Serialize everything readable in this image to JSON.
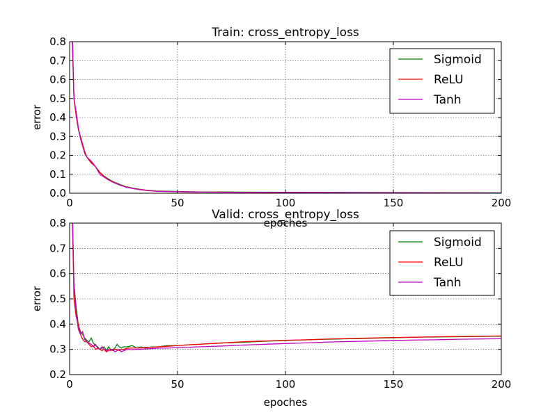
{
  "chart_data": [
    {
      "type": "line",
      "title": "Train: cross_entropy_loss",
      "xlabel": "epoches",
      "ylabel": "error",
      "xlim": [
        0,
        200
      ],
      "ylim": [
        0.0,
        0.8
      ],
      "xticks": [
        0,
        50,
        100,
        150,
        200
      ],
      "yticks": [
        0.0,
        0.1,
        0.2,
        0.3,
        0.4,
        0.5,
        0.6,
        0.7,
        0.8
      ],
      "ytick_labels": [
        "0.0",
        "0.1",
        "0.2",
        "0.3",
        "0.4",
        "0.5",
        "0.6",
        "0.7",
        "0.8"
      ],
      "grid": true,
      "legend_position": "top-right",
      "series": [
        {
          "name": "Sigmoid",
          "color": "#008000",
          "points": [
            [
              1,
              0.9
            ],
            [
              2,
              0.5
            ],
            [
              3,
              0.42
            ],
            [
              4,
              0.34
            ],
            [
              5,
              0.29
            ],
            [
              6,
              0.25
            ],
            [
              7,
              0.22
            ],
            [
              8,
              0.19
            ],
            [
              10,
              0.165
            ],
            [
              12,
              0.14
            ],
            [
              14,
              0.11
            ],
            [
              16,
              0.09
            ],
            [
              18,
              0.075
            ],
            [
              20,
              0.062
            ],
            [
              23,
              0.048
            ],
            [
              26,
              0.035
            ],
            [
              30,
              0.025
            ],
            [
              35,
              0.017
            ],
            [
              40,
              0.012
            ],
            [
              50,
              0.009
            ],
            [
              60,
              0.007
            ],
            [
              80,
              0.006
            ],
            [
              100,
              0.005
            ],
            [
              130,
              0.004
            ],
            [
              160,
              0.003
            ],
            [
              200,
              0.002
            ]
          ]
        },
        {
          "name": "ReLU",
          "color": "#ff0000",
          "points": [
            [
              1,
              0.95
            ],
            [
              2,
              0.5
            ],
            [
              3,
              0.41
            ],
            [
              4,
              0.34
            ],
            [
              5,
              0.3
            ],
            [
              6,
              0.26
            ],
            [
              7,
              0.22
            ],
            [
              8,
              0.19
            ],
            [
              10,
              0.16
            ],
            [
              12,
              0.14
            ],
            [
              14,
              0.11
            ],
            [
              16,
              0.088
            ],
            [
              18,
              0.072
            ],
            [
              20,
              0.06
            ],
            [
              23,
              0.045
            ],
            [
              26,
              0.033
            ],
            [
              30,
              0.024
            ],
            [
              35,
              0.016
            ],
            [
              40,
              0.011
            ],
            [
              50,
              0.008
            ],
            [
              60,
              0.006
            ],
            [
              80,
              0.005
            ],
            [
              100,
              0.004
            ],
            [
              130,
              0.003
            ],
            [
              160,
              0.002
            ],
            [
              200,
              0.0015
            ]
          ]
        },
        {
          "name": "Tanh",
          "color": "#bf00bf",
          "points": [
            [
              1,
              0.95
            ],
            [
              2,
              0.5
            ],
            [
              3,
              0.43
            ],
            [
              4,
              0.35
            ],
            [
              5,
              0.29
            ],
            [
              6,
              0.25
            ],
            [
              7,
              0.21
            ],
            [
              8,
              0.19
            ],
            [
              10,
              0.17
            ],
            [
              12,
              0.14
            ],
            [
              14,
              0.1
            ],
            [
              16,
              0.085
            ],
            [
              18,
              0.07
            ],
            [
              20,
              0.058
            ],
            [
              23,
              0.044
            ],
            [
              26,
              0.032
            ],
            [
              30,
              0.023
            ],
            [
              35,
              0.015
            ],
            [
              40,
              0.01
            ],
            [
              50,
              0.008
            ],
            [
              60,
              0.006
            ],
            [
              80,
              0.005
            ],
            [
              100,
              0.004
            ],
            [
              130,
              0.003
            ],
            [
              160,
              0.002
            ],
            [
              200,
              0.0015
            ]
          ]
        }
      ]
    },
    {
      "type": "line",
      "title": "Valid: cross_entropy_loss",
      "xlabel": "epoches",
      "ylabel": "error",
      "xlim": [
        0,
        200
      ],
      "ylim": [
        0.2,
        0.8
      ],
      "xticks": [
        0,
        50,
        100,
        150,
        200
      ],
      "yticks": [
        0.2,
        0.3,
        0.4,
        0.5,
        0.6,
        0.7,
        0.8
      ],
      "ytick_labels": [
        "0.2",
        "0.3",
        "0.4",
        "0.5",
        "0.6",
        "0.7",
        "0.8"
      ],
      "grid": true,
      "legend_position": "top-right",
      "series": [
        {
          "name": "Sigmoid",
          "color": "#008000",
          "points": [
            [
              1,
              0.95
            ],
            [
              2,
              0.56
            ],
            [
              3,
              0.47
            ],
            [
              4,
              0.4
            ],
            [
              5,
              0.37
            ],
            [
              6,
              0.36
            ],
            [
              7,
              0.345
            ],
            [
              8,
              0.335
            ],
            [
              9,
              0.33
            ],
            [
              10,
              0.345
            ],
            [
              11,
              0.325
            ],
            [
              12,
              0.315
            ],
            [
              13,
              0.31
            ],
            [
              14,
              0.3
            ],
            [
              15,
              0.305
            ],
            [
              16,
              0.31
            ],
            [
              17,
              0.295
            ],
            [
              18,
              0.31
            ],
            [
              19,
              0.3
            ],
            [
              20,
              0.3
            ],
            [
              21,
              0.305
            ],
            [
              22,
              0.32
            ],
            [
              23,
              0.31
            ],
            [
              24,
              0.305
            ],
            [
              25,
              0.31
            ],
            [
              27,
              0.31
            ],
            [
              29,
              0.315
            ],
            [
              31,
              0.305
            ],
            [
              33,
              0.31
            ],
            [
              35,
              0.305
            ],
            [
              38,
              0.31
            ],
            [
              41,
              0.31
            ],
            [
              45,
              0.315
            ],
            [
              50,
              0.315
            ],
            [
              55,
              0.318
            ],
            [
              60,
              0.32
            ],
            [
              70,
              0.325
            ],
            [
              80,
              0.328
            ],
            [
              90,
              0.332
            ],
            [
              100,
              0.335
            ],
            [
              110,
              0.338
            ],
            [
              120,
              0.34
            ],
            [
              130,
              0.342
            ],
            [
              140,
              0.344
            ],
            [
              150,
              0.346
            ],
            [
              160,
              0.348
            ],
            [
              170,
              0.349
            ],
            [
              180,
              0.35
            ],
            [
              190,
              0.351
            ],
            [
              200,
              0.352
            ]
          ]
        },
        {
          "name": "ReLU",
          "color": "#ff0000",
          "points": [
            [
              1,
              0.95
            ],
            [
              2,
              0.5
            ],
            [
              3,
              0.43
            ],
            [
              4,
              0.4
            ],
            [
              5,
              0.36
            ],
            [
              6,
              0.34
            ],
            [
              7,
              0.33
            ],
            [
              8,
              0.33
            ],
            [
              9,
              0.32
            ],
            [
              10,
              0.31
            ],
            [
              11,
              0.315
            ],
            [
              12,
              0.3
            ],
            [
              13,
              0.305
            ],
            [
              14,
              0.3
            ],
            [
              15,
              0.295
            ],
            [
              16,
              0.3
            ],
            [
              17,
              0.29
            ],
            [
              18,
              0.295
            ],
            [
              19,
              0.3
            ],
            [
              20,
              0.295
            ],
            [
              21,
              0.3
            ],
            [
              22,
              0.3
            ],
            [
              23,
              0.295
            ],
            [
              24,
              0.3
            ],
            [
              25,
              0.3
            ],
            [
              27,
              0.305
            ],
            [
              29,
              0.305
            ],
            [
              31,
              0.305
            ],
            [
              33,
              0.305
            ],
            [
              35,
              0.308
            ],
            [
              38,
              0.308
            ],
            [
              41,
              0.31
            ],
            [
              45,
              0.312
            ],
            [
              50,
              0.315
            ],
            [
              55,
              0.318
            ],
            [
              60,
              0.32
            ],
            [
              70,
              0.325
            ],
            [
              80,
              0.33
            ],
            [
              90,
              0.333
            ],
            [
              100,
              0.336
            ],
            [
              110,
              0.338
            ],
            [
              120,
              0.341
            ],
            [
              130,
              0.343
            ],
            [
              140,
              0.345
            ],
            [
              150,
              0.347
            ],
            [
              160,
              0.348
            ],
            [
              170,
              0.35
            ],
            [
              180,
              0.351
            ],
            [
              190,
              0.352
            ],
            [
              200,
              0.353
            ]
          ]
        },
        {
          "name": "Tanh",
          "color": "#bf00bf",
          "points": [
            [
              1,
              0.95
            ],
            [
              2,
              0.55
            ],
            [
              3,
              0.45
            ],
            [
              4,
              0.38
            ],
            [
              5,
              0.36
            ],
            [
              6,
              0.37
            ],
            [
              7,
              0.34
            ],
            [
              8,
              0.33
            ],
            [
              9,
              0.325
            ],
            [
              10,
              0.32
            ],
            [
              11,
              0.31
            ],
            [
              12,
              0.32
            ],
            [
              13,
              0.305
            ],
            [
              14,
              0.3
            ],
            [
              15,
              0.31
            ],
            [
              16,
              0.3
            ],
            [
              17,
              0.295
            ],
            [
              18,
              0.3
            ],
            [
              19,
              0.295
            ],
            [
              20,
              0.3
            ],
            [
              21,
              0.29
            ],
            [
              22,
              0.295
            ],
            [
              23,
              0.3
            ],
            [
              24,
              0.29
            ],
            [
              25,
              0.295
            ],
            [
              27,
              0.3
            ],
            [
              29,
              0.298
            ],
            [
              31,
              0.3
            ],
            [
              33,
              0.3
            ],
            [
              35,
              0.302
            ],
            [
              38,
              0.303
            ],
            [
              41,
              0.305
            ],
            [
              45,
              0.305
            ],
            [
              50,
              0.307
            ],
            [
              55,
              0.308
            ],
            [
              60,
              0.31
            ],
            [
              70,
              0.313
            ],
            [
              80,
              0.317
            ],
            [
              90,
              0.32
            ],
            [
              100,
              0.323
            ],
            [
              110,
              0.326
            ],
            [
              120,
              0.329
            ],
            [
              130,
              0.331
            ],
            [
              140,
              0.333
            ],
            [
              150,
              0.335
            ],
            [
              160,
              0.337
            ],
            [
              170,
              0.338
            ],
            [
              180,
              0.34
            ],
            [
              190,
              0.341
            ],
            [
              200,
              0.342
            ]
          ]
        }
      ]
    }
  ]
}
